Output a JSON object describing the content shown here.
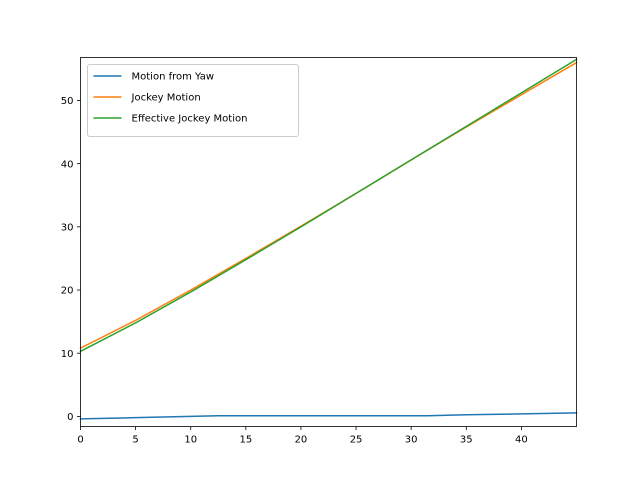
{
  "chart_data": {
    "type": "line",
    "title": "",
    "xlabel": "",
    "ylabel": "",
    "xlim": [
      0,
      45
    ],
    "ylim": [
      -1.6,
      56.8
    ],
    "xticks": [
      0,
      5,
      10,
      15,
      20,
      25,
      30,
      35,
      40
    ],
    "yticks": [
      0,
      10,
      20,
      30,
      40,
      50
    ],
    "grid": false,
    "legend_position": "upper-left",
    "series": [
      {
        "name": "Motion from Yaw",
        "color": "#1f77b4",
        "x": [
          0,
          5,
          12.5,
          20,
          31.5,
          35,
          40,
          45
        ],
        "y": [
          -0.4,
          -0.2,
          0.1,
          0.1,
          0.1,
          0.25,
          0.4,
          0.55
        ]
      },
      {
        "name": "Jockey Motion",
        "color": "#ff7f0e",
        "x": [
          0,
          5,
          10,
          15,
          20,
          25,
          30,
          35,
          40,
          45
        ],
        "y": [
          10.8,
          15.2,
          20.0,
          25.0,
          30.1,
          35.3,
          40.6,
          45.8,
          50.9,
          56.0
        ]
      },
      {
        "name": "Effective Jockey Motion",
        "color": "#2ca02c",
        "x": [
          0,
          5,
          10,
          15,
          20,
          25,
          30,
          35,
          40,
          45
        ],
        "y": [
          10.3,
          14.8,
          19.7,
          24.8,
          30.0,
          35.3,
          40.6,
          45.9,
          51.2,
          56.5
        ]
      }
    ]
  }
}
